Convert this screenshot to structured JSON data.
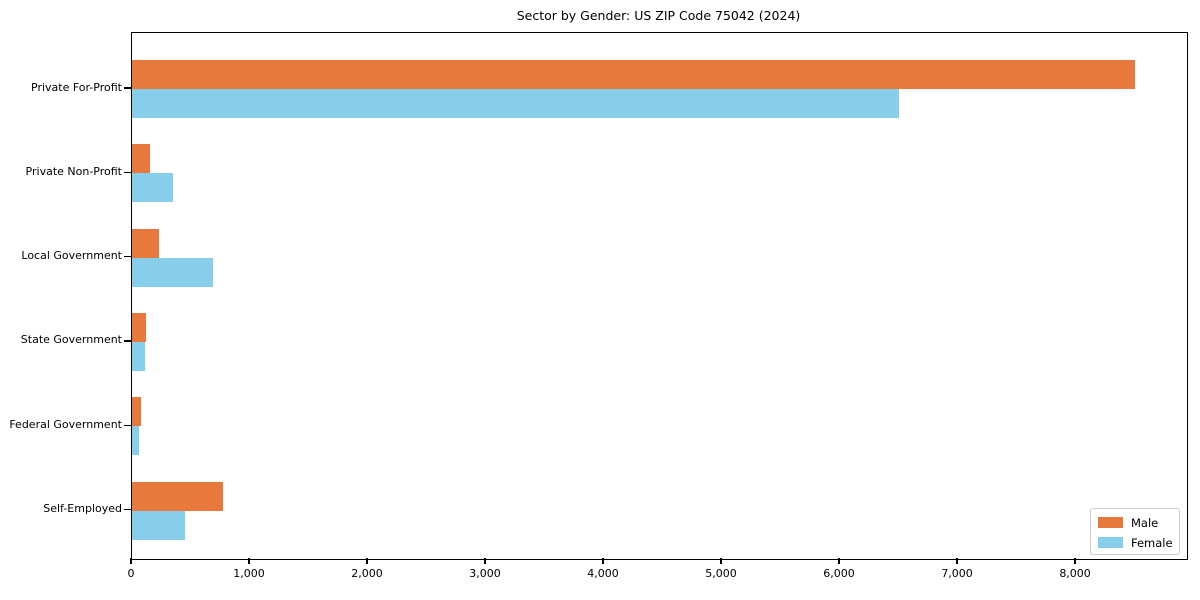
{
  "title": "Sector by Gender: US ZIP Code 75042 (2024)",
  "colors": {
    "male": "#E8793C",
    "female": "#87CEEB",
    "axis": "#000000",
    "legend_border": "#CCCCCC",
    "background": "#FFFFFF"
  },
  "chart_data": {
    "type": "bar",
    "orientation": "horizontal",
    "title": "Sector by Gender: US ZIP Code 75042 (2024)",
    "categories": [
      "Private For-Profit",
      "Private Non-Profit",
      "Local Government",
      "State Government",
      "Federal Government",
      "Self-Employed"
    ],
    "series": [
      {
        "name": "Male",
        "color": "#E8793C",
        "values": [
          8500,
          150,
          230,
          120,
          75,
          770
        ]
      },
      {
        "name": "Female",
        "color": "#87CEEB",
        "values": [
          6500,
          350,
          690,
          110,
          60,
          450
        ]
      }
    ],
    "xlabel": "",
    "ylabel": "",
    "xlim": [
      0,
      8940
    ],
    "x_ticks": [
      0,
      1000,
      2000,
      3000,
      4000,
      5000,
      6000,
      7000,
      8000
    ],
    "x_tick_labels": [
      "0",
      "1,000",
      "2,000",
      "3,000",
      "4,000",
      "5,000",
      "6,000",
      "7,000",
      "8,000"
    ],
    "grid": false,
    "legend_position": "lower right"
  }
}
